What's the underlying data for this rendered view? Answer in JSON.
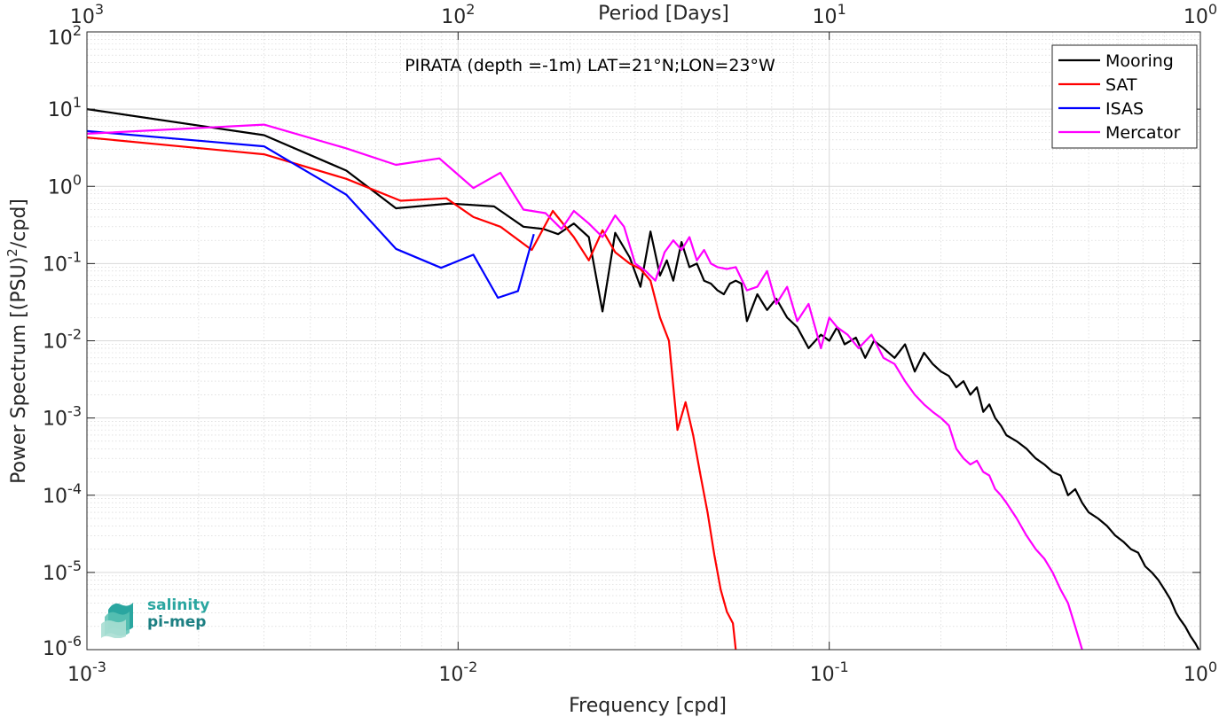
{
  "chart_data": {
    "type": "line",
    "title": "PIRATA (depth =-1m) LAT=21°N;LON=23°W",
    "xlabel": "Frequency [cpd]",
    "ylabel": "Power Spectrum [(PSU)²/cpd]",
    "top_xlabel": "Period [Days]",
    "xscale": "log",
    "yscale": "log",
    "xlim": [
      0.001,
      1
    ],
    "ylim": [
      1e-06,
      100
    ],
    "x_ticks": [
      0.001,
      0.01,
      0.1,
      1
    ],
    "x_tick_exponents": [
      "-3",
      "-2",
      "-1",
      "0"
    ],
    "top_ticks": [
      1000,
      100,
      10,
      1
    ],
    "top_tick_exponents": [
      "3",
      "2",
      "1",
      "0"
    ],
    "y_ticks": [
      1e-06,
      1e-05,
      0.0001,
      0.001,
      0.01,
      0.1,
      1,
      10,
      100
    ],
    "y_tick_exponents": [
      "-6",
      "-5",
      "-4",
      "-3",
      "-2",
      "-1",
      "0",
      "1",
      "2"
    ],
    "tick_base": "10",
    "grid": true,
    "legend_position": "top-right",
    "series": [
      {
        "name": "Mooring",
        "color": "#000000",
        "x": [
          0.001,
          0.003,
          0.005,
          0.0068,
          0.0095,
          0.0125,
          0.015,
          0.017,
          0.0186,
          0.0205,
          0.0225,
          0.0245,
          0.0265,
          0.029,
          0.031,
          0.033,
          0.035,
          0.0365,
          0.038,
          0.04,
          0.042,
          0.044,
          0.046,
          0.048,
          0.05,
          0.052,
          0.054,
          0.056,
          0.058,
          0.06,
          0.064,
          0.068,
          0.072,
          0.077,
          0.082,
          0.088,
          0.095,
          0.1,
          0.105,
          0.11,
          0.118,
          0.125,
          0.132,
          0.14,
          0.15,
          0.16,
          0.17,
          0.18,
          0.19,
          0.2,
          0.21,
          0.22,
          0.23,
          0.24,
          0.25,
          0.26,
          0.27,
          0.28,
          0.29,
          0.3,
          0.32,
          0.34,
          0.36,
          0.38,
          0.4,
          0.42,
          0.44,
          0.46,
          0.48,
          0.5,
          0.53,
          0.56,
          0.59,
          0.62,
          0.65,
          0.68,
          0.71,
          0.74,
          0.77,
          0.8,
          0.83,
          0.86,
          0.88,
          0.91,
          0.94,
          0.97,
          0.99
        ],
        "y": [
          10,
          4.6,
          1.6,
          0.52,
          0.6,
          0.55,
          0.3,
          0.28,
          0.24,
          0.33,
          0.22,
          0.024,
          0.25,
          0.12,
          0.05,
          0.26,
          0.07,
          0.11,
          0.06,
          0.19,
          0.09,
          0.1,
          0.06,
          0.055,
          0.045,
          0.04,
          0.055,
          0.06,
          0.055,
          0.018,
          0.04,
          0.025,
          0.035,
          0.02,
          0.015,
          0.008,
          0.012,
          0.01,
          0.015,
          0.009,
          0.011,
          0.006,
          0.01,
          0.008,
          0.006,
          0.009,
          0.004,
          0.007,
          0.005,
          0.004,
          0.0035,
          0.0025,
          0.003,
          0.002,
          0.0025,
          0.0012,
          0.0015,
          0.001,
          0.0008,
          0.0006,
          0.0005,
          0.0004,
          0.0003,
          0.00025,
          0.0002,
          0.00018,
          0.0001,
          0.00012,
          8e-05,
          6e-05,
          5e-05,
          4e-05,
          3e-05,
          2.5e-05,
          2e-05,
          1.8e-05,
          1.2e-05,
          1e-05,
          8e-06,
          6e-06,
          4.5e-06,
          3e-06,
          2.5e-06,
          2e-06,
          1.5e-06,
          1.2e-06,
          1e-06
        ]
      },
      {
        "name": "SAT",
        "color": "#ff0000",
        "x": [
          0.001,
          0.003,
          0.005,
          0.007,
          0.0093,
          0.011,
          0.013,
          0.0158,
          0.018,
          0.0205,
          0.0225,
          0.0245,
          0.0265,
          0.029,
          0.031,
          0.033,
          0.035,
          0.037,
          0.039,
          0.041,
          0.043,
          0.045,
          0.047,
          0.049,
          0.051,
          0.053,
          0.055,
          0.056
        ],
        "y": [
          4.3,
          2.6,
          1.25,
          0.65,
          0.7,
          0.4,
          0.3,
          0.15,
          0.48,
          0.22,
          0.11,
          0.27,
          0.14,
          0.1,
          0.085,
          0.06,
          0.02,
          0.01,
          0.0007,
          0.0016,
          0.0006,
          0.00018,
          6e-05,
          1.7e-05,
          6e-06,
          3.1e-06,
          2.2e-06,
          1e-06
        ]
      },
      {
        "name": "ISAS",
        "color": "#0000ff",
        "x": [
          0.001,
          0.003,
          0.005,
          0.0068,
          0.009,
          0.011,
          0.0128,
          0.0145,
          0.016
        ],
        "y": [
          5.2,
          3.3,
          0.78,
          0.155,
          0.088,
          0.13,
          0.036,
          0.044,
          0.24
        ]
      },
      {
        "name": "Mercator",
        "color": "#ff00ff",
        "x": [
          0.001,
          0.003,
          0.005,
          0.0068,
          0.0089,
          0.011,
          0.013,
          0.015,
          0.0172,
          0.019,
          0.0205,
          0.0225,
          0.0245,
          0.0265,
          0.028,
          0.03,
          0.032,
          0.034,
          0.036,
          0.038,
          0.04,
          0.042,
          0.044,
          0.046,
          0.048,
          0.05,
          0.053,
          0.056,
          0.06,
          0.064,
          0.068,
          0.072,
          0.077,
          0.082,
          0.088,
          0.095,
          0.1,
          0.105,
          0.112,
          0.12,
          0.13,
          0.14,
          0.15,
          0.16,
          0.17,
          0.18,
          0.19,
          0.2,
          0.21,
          0.22,
          0.23,
          0.24,
          0.25,
          0.26,
          0.27,
          0.28,
          0.29,
          0.3,
          0.32,
          0.34,
          0.36,
          0.38,
          0.4,
          0.42,
          0.44,
          0.46,
          0.48
        ],
        "y": [
          4.8,
          6.3,
          3.1,
          1.9,
          2.3,
          0.95,
          1.5,
          0.5,
          0.45,
          0.28,
          0.48,
          0.33,
          0.22,
          0.42,
          0.3,
          0.1,
          0.08,
          0.06,
          0.14,
          0.2,
          0.15,
          0.22,
          0.11,
          0.15,
          0.1,
          0.09,
          0.085,
          0.09,
          0.045,
          0.05,
          0.08,
          0.03,
          0.05,
          0.018,
          0.03,
          0.008,
          0.02,
          0.015,
          0.012,
          0.008,
          0.012,
          0.006,
          0.005,
          0.003,
          0.002,
          0.0015,
          0.0012,
          0.001,
          0.0008,
          0.0004,
          0.0003,
          0.00025,
          0.00028,
          0.0002,
          0.00018,
          0.00012,
          0.0001,
          8e-05,
          5e-05,
          3e-05,
          2e-05,
          1.5e-05,
          1e-05,
          6e-06,
          4e-06,
          2e-06,
          1e-06
        ]
      }
    ]
  },
  "logo": {
    "line1": "salinity",
    "line2": "pi-mep",
    "color1": "#2aa6a0",
    "color2": "#1c7f82"
  }
}
